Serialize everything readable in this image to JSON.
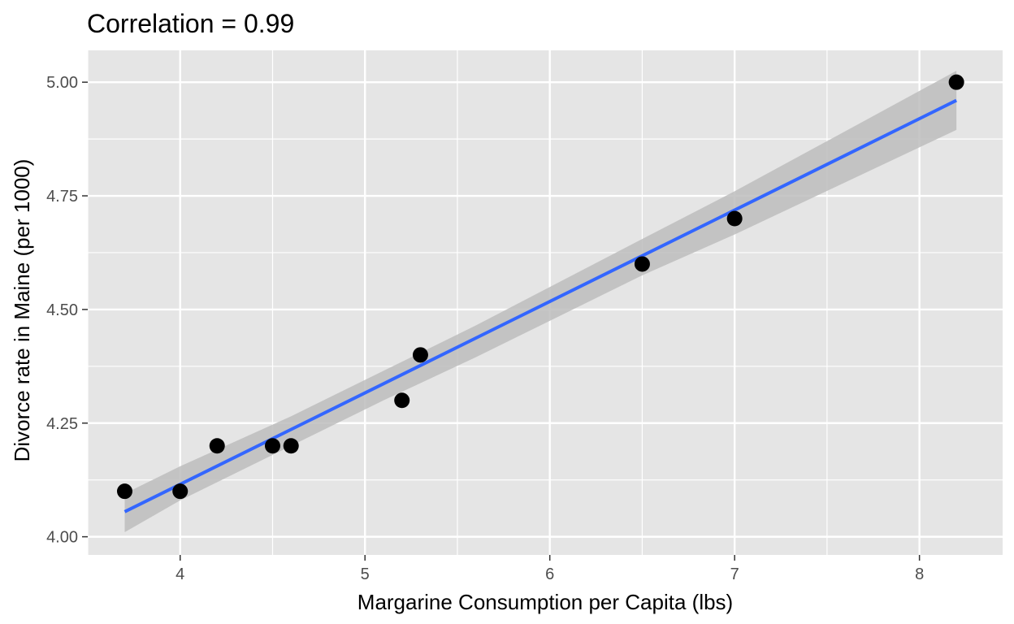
{
  "chart_data": {
    "type": "scatter",
    "title": "Correlation = 0.99",
    "xlabel": "Margarine Consumption per Capita (lbs)",
    "ylabel": "Divorce rate in Maine (per 1000)",
    "xlim": [
      3.5,
      8.45
    ],
    "ylim": [
      3.96,
      5.07
    ],
    "x_ticks": [
      4,
      5,
      6,
      7,
      8
    ],
    "x_tick_labels": [
      "4",
      "5",
      "6",
      "7",
      "8"
    ],
    "y_ticks": [
      4.0,
      4.25,
      4.5,
      4.75,
      5.0
    ],
    "y_tick_labels": [
      "4.00",
      "4.25",
      "4.50",
      "4.75",
      "5.00"
    ],
    "grid": true,
    "colors": {
      "panel_background": "#e5e5e5",
      "grid_major": "#ffffff",
      "points": "#000000",
      "fit_line": "#3366ff",
      "confidence_band": "#bdbdbd"
    },
    "points": [
      {
        "x": 8.2,
        "y": 5.0
      },
      {
        "x": 7.0,
        "y": 4.7
      },
      {
        "x": 6.5,
        "y": 4.6
      },
      {
        "x": 5.3,
        "y": 4.4
      },
      {
        "x": 5.2,
        "y": 4.3
      },
      {
        "x": 4.0,
        "y": 4.1
      },
      {
        "x": 4.6,
        "y": 4.2
      },
      {
        "x": 4.5,
        "y": 4.2
      },
      {
        "x": 4.2,
        "y": 4.2
      },
      {
        "x": 3.7,
        "y": 4.1
      }
    ],
    "fit_line": {
      "method": "linear",
      "x": [
        3.7,
        8.2
      ],
      "y": [
        4.055,
        4.96
      ]
    },
    "confidence_band": {
      "x": [
        3.7,
        4.0,
        4.6,
        5.1,
        5.6,
        6.5,
        7.0,
        8.2
      ],
      "lower": [
        4.01,
        4.08,
        4.2,
        4.3,
        4.395,
        4.575,
        4.665,
        4.895
      ],
      "upper": [
        4.095,
        4.155,
        4.265,
        4.365,
        4.465,
        4.655,
        4.76,
        5.025
      ]
    }
  }
}
